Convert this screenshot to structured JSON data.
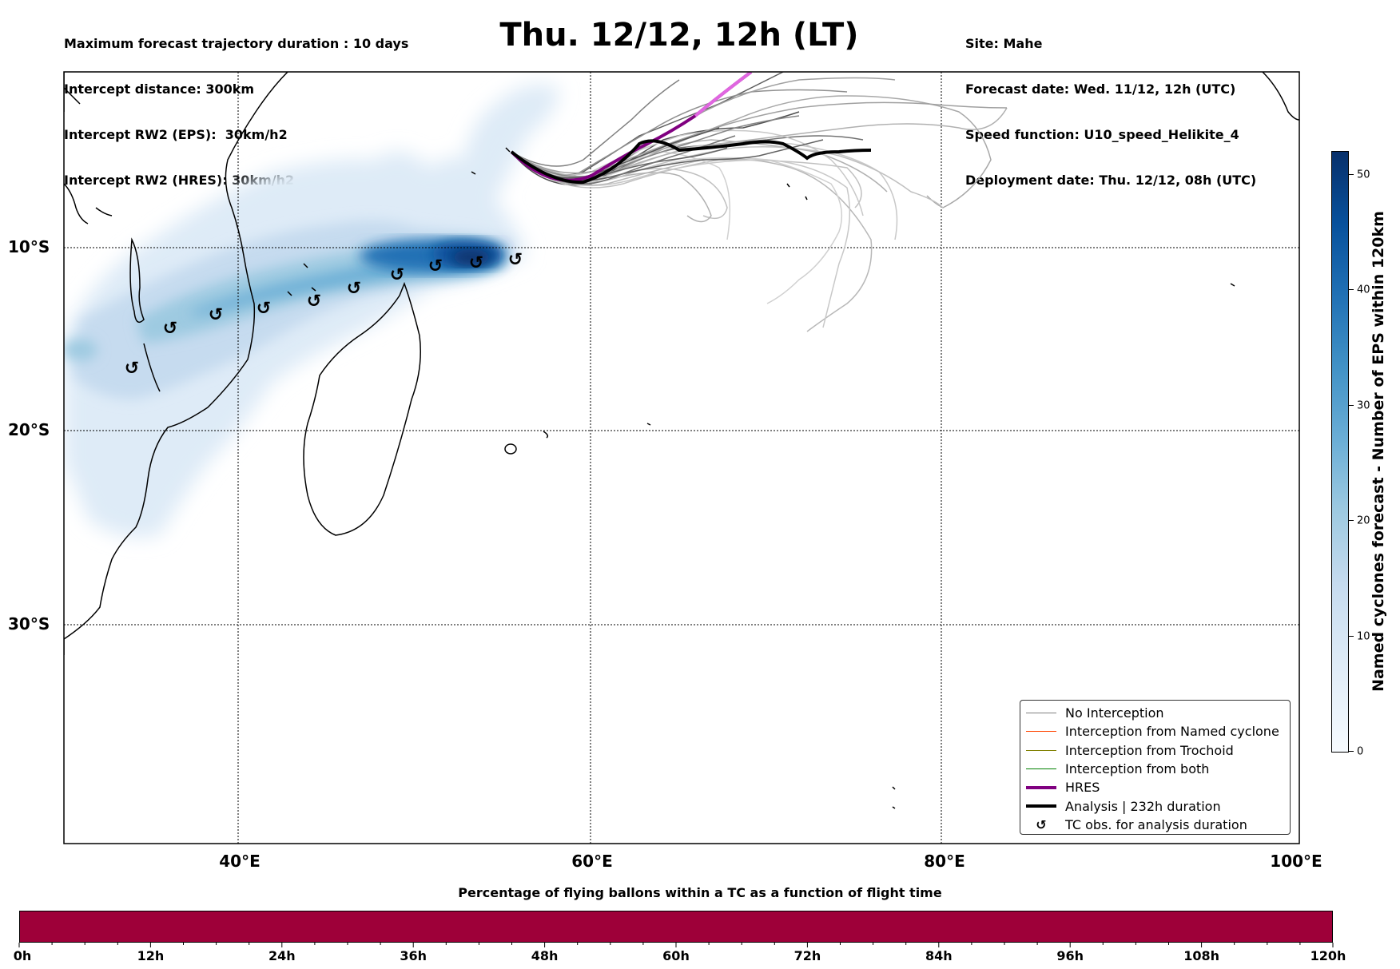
{
  "header_left": [
    "Maximum forecast trajectory duration : 10 days",
    "Intercept distance: 300km",
    "Intercept RW2 (EPS):  30km/h2",
    "Intercept RW2 (HRES): 30km/h2"
  ],
  "header_right": [
    "Site: Mahe",
    "Forecast date: Wed. 11/12, 12h (UTC)",
    "Speed function: U10_speed_Helikite_4",
    "Deployment date: Thu. 12/12, 08h (UTC)"
  ],
  "title": "Thu. 12/12, 12h (LT)",
  "map": {
    "lat_labels": [
      "10°S",
      "20°S",
      "30°S"
    ],
    "lon_labels": [
      "40°E",
      "60°E",
      "80°E",
      "100°E"
    ],
    "grid": "dotted",
    "colors": {
      "analysis": "#000000",
      "hres": "#800080",
      "no_interception": "#808080",
      "interception_named": "#ff4500",
      "interception_trochoid": "#808000",
      "interception_both": "#008000"
    },
    "tc_obs_icon": "tropical-cyclone-icon",
    "tc_obs_glyph": "↺"
  },
  "legend": {
    "items": [
      {
        "label": "No Interception",
        "color": "#808080",
        "kind": "line"
      },
      {
        "label": "Interception from Named cyclone",
        "color": "#ff4500",
        "kind": "line"
      },
      {
        "label": "Interception from Trochoid",
        "color": "#808000",
        "kind": "line"
      },
      {
        "label": "Interception from both",
        "color": "#008000",
        "kind": "line"
      },
      {
        "label": "HRES",
        "color": "#800080",
        "kind": "thick"
      },
      {
        "label": "Analysis | 232h duration",
        "color": "#000000",
        "kind": "thick"
      },
      {
        "label": "TC obs. for analysis duration",
        "color": "#000000",
        "kind": "glyph"
      }
    ]
  },
  "colorbar": {
    "title": "Named cyclones forecast - Number of EPS within 120km",
    "ticks": [
      "0",
      "10",
      "20",
      "30",
      "40",
      "50"
    ],
    "range": [
      0,
      52
    ],
    "colormap": "Blues"
  },
  "bottom_bar": {
    "title": "Percentage of flying ballons within a TC as a function of flight time",
    "ticks": [
      "0h",
      "12h",
      "24h",
      "36h",
      "48h",
      "60h",
      "72h",
      "84h",
      "96h",
      "108h",
      "120h"
    ],
    "color": "#9e0039"
  }
}
